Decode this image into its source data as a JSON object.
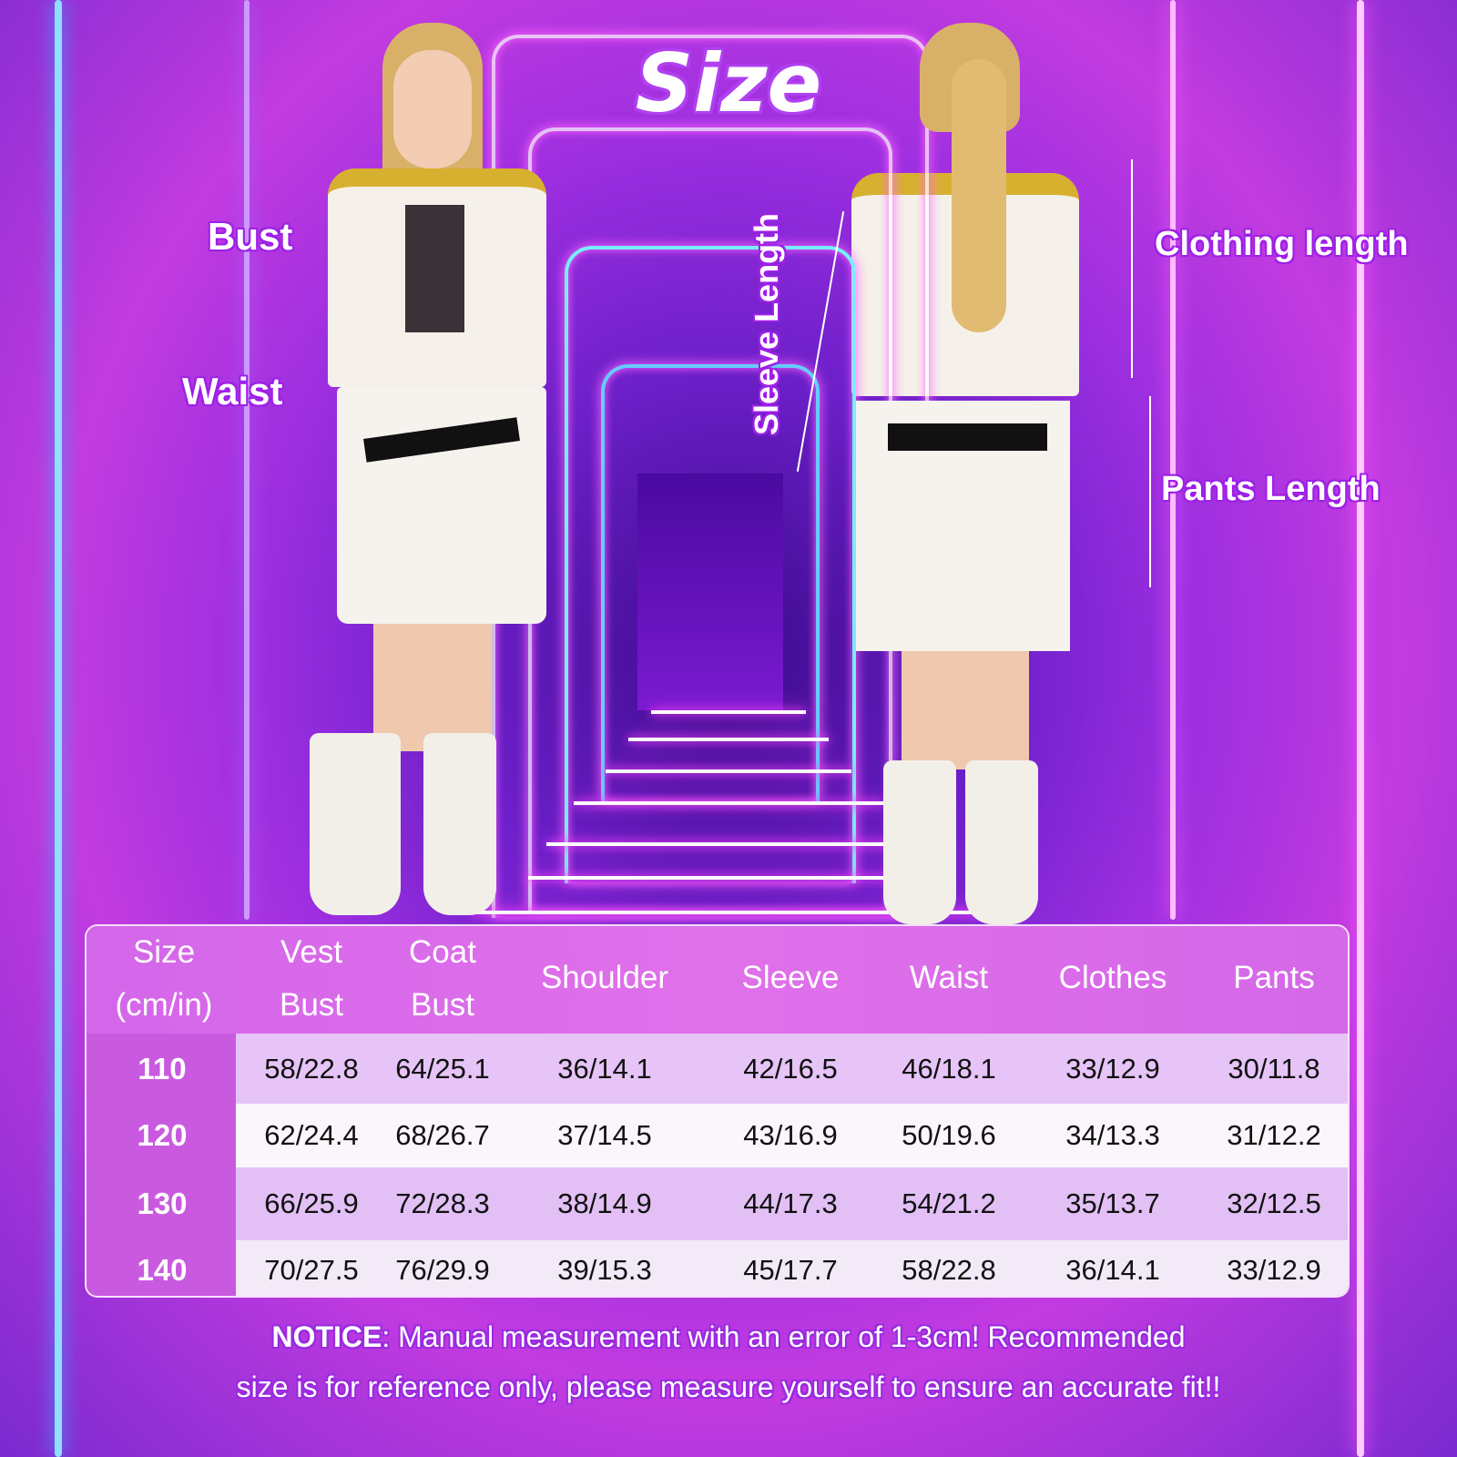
{
  "title": "Size",
  "labels": {
    "bust": "Bust",
    "waist": "Waist",
    "sleeve_length": "Sleeve Length",
    "clothing_length": "Clothing length",
    "pants_length": "Pants Length"
  },
  "table": {
    "headers": [
      [
        "Size",
        "(cm/in)"
      ],
      [
        "Vest",
        "Bust"
      ],
      [
        "Coat",
        "Bust"
      ],
      [
        "Shoulder"
      ],
      [
        "Sleeve"
      ],
      [
        "Waist"
      ],
      [
        "Clothes"
      ],
      [
        "Pants"
      ]
    ],
    "rows": [
      {
        "size": "110",
        "values": [
          "58/22.8",
          "64/25.1",
          "36/14.1",
          "42/16.5",
          "46/18.1",
          "33/12.9",
          "30/11.8"
        ]
      },
      {
        "size": "120",
        "values": [
          "62/24.4",
          "68/26.7",
          "37/14.5",
          "43/16.9",
          "50/19.6",
          "34/13.3",
          "31/12.2"
        ]
      },
      {
        "size": "130",
        "values": [
          "66/25.9",
          "72/28.3",
          "38/14.9",
          "44/17.3",
          "54/21.2",
          "35/13.7",
          "32/12.5"
        ]
      },
      {
        "size": "140",
        "values": [
          "70/27.5",
          "76/29.9",
          "39/15.3",
          "45/17.7",
          "58/22.8",
          "36/14.1",
          "33/12.9"
        ]
      }
    ]
  },
  "notice": {
    "prefix": "NOTICE",
    "line1": ": Manual measurement with an error of 1-3cm! Recommended",
    "line2": "size is for reference only, please measure yourself to ensure an accurate fit!!"
  },
  "colors": {
    "header": "#d86ae8",
    "size_column": "#c95ae0",
    "neon_pink": "#ff5cf0",
    "neon_blue": "#5ac8ff"
  }
}
